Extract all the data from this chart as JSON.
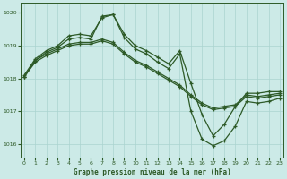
{
  "title": "Graphe pression niveau de la mer (hPa)",
  "bg_color": "#cceae7",
  "grid_color": "#aad4d0",
  "line_color": "#2d5a27",
  "ylim": [
    1015.6,
    1020.3
  ],
  "xlim": [
    -0.3,
    23.3
  ],
  "yticks": [
    1016,
    1017,
    1018,
    1019,
    1020
  ],
  "xticks": [
    0,
    1,
    2,
    3,
    4,
    5,
    6,
    7,
    8,
    9,
    10,
    11,
    12,
    13,
    14,
    15,
    16,
    17,
    18,
    19,
    20,
    21,
    22,
    23
  ],
  "line1": [
    1018.05,
    1018.55,
    1018.8,
    1018.95,
    1019.2,
    1019.25,
    1019.2,
    1019.9,
    1019.95,
    1019.35,
    1019.0,
    1018.85,
    1018.65,
    1018.45,
    1018.85,
    1017.85,
    1016.9,
    1016.25,
    1016.6,
    1017.15,
    1017.55,
    1017.55,
    1017.6,
    1017.6
  ],
  "line2": [
    1018.1,
    1018.6,
    1018.85,
    1019.0,
    1019.3,
    1019.35,
    1019.3,
    1019.85,
    1019.95,
    1019.25,
    1018.9,
    1018.75,
    1018.5,
    1018.3,
    1018.75,
    1017.0,
    1016.15,
    1015.95,
    1016.1,
    1016.55,
    1017.3,
    1017.25,
    1017.3,
    1017.4
  ],
  "line3": [
    1018.05,
    1018.55,
    1018.75,
    1018.9,
    1019.05,
    1019.1,
    1019.1,
    1019.2,
    1019.1,
    1018.8,
    1018.55,
    1018.4,
    1018.2,
    1018.0,
    1017.8,
    1017.5,
    1017.25,
    1017.1,
    1017.15,
    1017.2,
    1017.5,
    1017.45,
    1017.5,
    1017.55
  ],
  "line4": [
    1018.05,
    1018.5,
    1018.7,
    1018.85,
    1019.0,
    1019.05,
    1019.05,
    1019.15,
    1019.05,
    1018.75,
    1018.5,
    1018.35,
    1018.15,
    1017.95,
    1017.75,
    1017.45,
    1017.2,
    1017.05,
    1017.1,
    1017.15,
    1017.45,
    1017.4,
    1017.45,
    1017.5
  ]
}
